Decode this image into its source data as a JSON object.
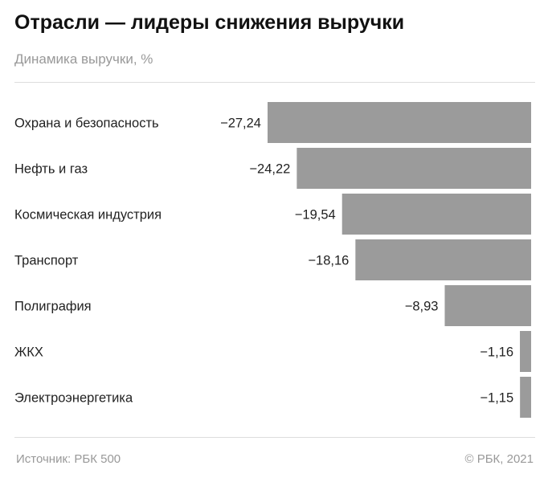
{
  "title": "Отрасли — лидеры снижения выручки",
  "subtitle": "Динамика выручки, %",
  "footer": {
    "source": "Источник: РБК 500",
    "copyright": "© РБК, 2021"
  },
  "chart_data": {
    "type": "bar",
    "orientation": "horizontal",
    "categories": [
      "Охрана и безопасность",
      "Нефть и газ",
      "Космическая индустрия",
      "Транспорт",
      "Полиграфия",
      "ЖКХ",
      "Электроэнергетика"
    ],
    "values": [
      -27.24,
      -24.22,
      -19.54,
      -18.16,
      -8.93,
      -1.16,
      -1.15
    ],
    "value_labels": [
      "−27,24",
      "−24,22",
      "−19,54",
      "−18,16",
      "−8,93",
      "−1,16",
      "−1,15"
    ],
    "xlim": [
      -27.24,
      0
    ],
    "bar_color": "#9b9b9b",
    "grid": false,
    "title": "Отрасли — лидеры снижения выручки",
    "ylabel": "Динамика выручки, %"
  }
}
